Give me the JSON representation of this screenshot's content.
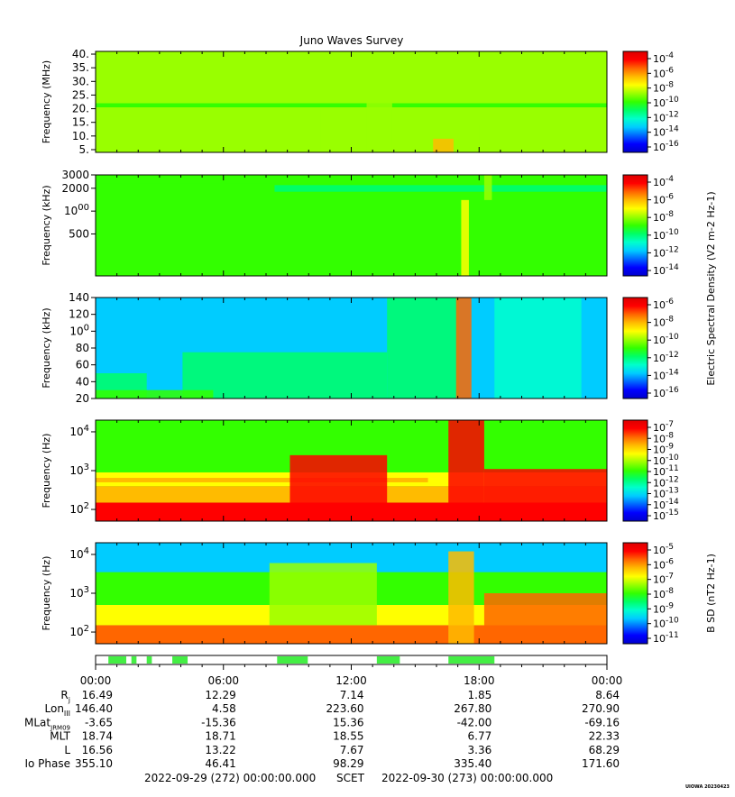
{
  "title": "Juno Waves Survey",
  "colors": {
    "colormap": [
      "#0000cc",
      "#0000ff",
      "#0066ff",
      "#00ccff",
      "#00ffcc",
      "#00ff66",
      "#33ff00",
      "#99ff00",
      "#ffff00",
      "#ffbb00",
      "#ff6600",
      "#ff0000",
      "#dd0000"
    ],
    "activity_bar": "#44ee44"
  },
  "chart_data": [
    {
      "type": "heatmap",
      "panel": "hfr-high",
      "ylabel": "Frequency (MHz)",
      "yscale": "linear",
      "ylim": [
        4,
        41
      ],
      "yticks": [
        {
          "v": 5,
          "label": "5."
        },
        {
          "v": 10,
          "label": "10."
        },
        {
          "v": 15,
          "label": "15."
        },
        {
          "v": 20,
          "label": "20."
        },
        {
          "v": 25,
          "label": "25."
        },
        {
          "v": 30,
          "label": "30."
        },
        {
          "v": 35,
          "label": "35."
        },
        {
          "v": 40,
          "label": "40."
        }
      ],
      "background_level": 6.5,
      "bands": [
        {
          "y": [
            20.5,
            22
          ],
          "level": 5.6,
          "t": [
            0,
            1
          ]
        }
      ],
      "events": [
        {
          "t": [
            0.66,
            0.7
          ],
          "y": [
            4,
            9
          ],
          "level": 8.5
        },
        {
          "t": [
            0.44,
            0.5
          ],
          "y": [
            4,
            20
          ],
          "level": 7.2
        },
        {
          "t": [
            0.53,
            0.58
          ],
          "y": [
            4,
            22
          ],
          "level": 7.4
        },
        {
          "t": [
            0.75,
            0.79
          ],
          "y": [
            4,
            14
          ],
          "level": 7.0
        }
      ],
      "colorbar": {
        "ticks": [
          "10-4",
          "10-6",
          "10-8",
          "10-10",
          "10-12",
          "10-14",
          "10-16"
        ],
        "label": ""
      }
    },
    {
      "type": "heatmap",
      "panel": "hfr-low",
      "ylabel": "Frequency (kHz)",
      "yscale": "log",
      "ylim": [
        140,
        3000
      ],
      "yticks": [
        {
          "v": 500,
          "label": "500"
        },
        {
          "v": 1000,
          "label": "1000"
        },
        {
          "v": 2000,
          "label": "2000"
        },
        {
          "v": 3000,
          "label": "3000"
        }
      ],
      "background_level": 6.3,
      "bands": [
        {
          "y": [
            2300,
            2900
          ],
          "level": 5.8,
          "t": [
            0,
            1
          ]
        },
        {
          "y": [
            1800,
            2200
          ],
          "level": 5.2,
          "t": [
            0.35,
            1
          ]
        }
      ],
      "events": [
        {
          "t": [
            0.715,
            0.73
          ],
          "y": [
            140,
            1400
          ],
          "level": 8.0
        },
        {
          "t": [
            0.76,
            0.775
          ],
          "y": [
            1400,
            3000
          ],
          "level": 6.8
        }
      ],
      "colorbar": {
        "ticks": [
          "10-4",
          "10-6",
          "10-8",
          "10-10",
          "10-12",
          "10-14"
        ],
        "label": "Electric Spectral Density (V2 m-2 Hz-1)"
      }
    },
    {
      "type": "heatmap",
      "panel": "lfr-high",
      "ylabel": "Frequency (kHz)",
      "yscale": "linear",
      "ylim": [
        20,
        140
      ],
      "yticks": [
        {
          "v": 20,
          "label": "20"
        },
        {
          "v": 40,
          "label": "40"
        },
        {
          "v": 60,
          "label": "60"
        },
        {
          "v": 80,
          "label": "80"
        },
        {
          "v": 100,
          "label": "100"
        },
        {
          "v": 120,
          "label": "120"
        },
        {
          "v": 140,
          "label": "140"
        }
      ],
      "background_level": 2.8,
      "bands": [],
      "events": [
        {
          "t": [
            0.0,
            0.1
          ],
          "y": [
            20,
            50
          ],
          "level": 4.5
        },
        {
          "t": [
            0.17,
            0.57
          ],
          "y": [
            20,
            75
          ],
          "level": 5.0
        },
        {
          "t": [
            0.57,
            0.71
          ],
          "y": [
            20,
            140
          ],
          "level": 4.5
        },
        {
          "t": [
            0.705,
            0.735
          ],
          "y": [
            20,
            140
          ],
          "level": 10.0
        },
        {
          "t": [
            0.78,
            0.95
          ],
          "y": [
            20,
            140
          ],
          "level": 4.0
        },
        {
          "t": [
            0.0,
            0.23
          ],
          "y": [
            20,
            30
          ],
          "level": 5.5
        }
      ],
      "colorbar": {
        "ticks": [
          "10-6",
          "10-8",
          "10-10",
          "10-12",
          "10-14",
          "10-16"
        ],
        "label": ""
      }
    },
    {
      "type": "heatmap",
      "panel": "lfr-low",
      "ylabel": "Frequency (Hz)",
      "yscale": "log",
      "ylim": [
        50,
        20000
      ],
      "yticks": [
        {
          "v": 100,
          "label": "10^2"
        },
        {
          "v": 1000,
          "label": "10^3"
        },
        {
          "v": 10000,
          "label": "10^4"
        }
      ],
      "background_level": 6.0,
      "bands": [
        {
          "y": [
            50,
            150
          ],
          "level": 10.8,
          "t": [
            0,
            1
          ]
        },
        {
          "y": [
            150,
            400
          ],
          "level": 9.0,
          "t": [
            0,
            1
          ]
        },
        {
          "y": [
            400,
            900
          ],
          "level": 8.0,
          "t": [
            0,
            1
          ]
        },
        {
          "y": [
            500,
            650
          ],
          "level": 8.8,
          "t": [
            0,
            0.65
          ]
        }
      ],
      "events": [
        {
          "t": [
            0.38,
            0.57
          ],
          "y": [
            50,
            2500
          ],
          "level": 10.5
        },
        {
          "t": [
            0.69,
            0.76
          ],
          "y": [
            50,
            20000
          ],
          "level": 11.0
        },
        {
          "t": [
            0.76,
            1.0
          ],
          "y": [
            50,
            1100
          ],
          "level": 11.2
        }
      ],
      "colorbar": {
        "ticks": [
          "10-7",
          "10-8",
          "10-9",
          "10-10",
          "10-11",
          "10-12",
          "10-13",
          "10-14",
          "10-15"
        ],
        "label": ""
      }
    },
    {
      "type": "heatmap",
      "panel": "magnetic",
      "ylabel": "Frequency (Hz)",
      "yscale": "log",
      "ylim": [
        50,
        20000
      ],
      "yticks": [
        {
          "v": 100,
          "label": "10^2"
        },
        {
          "v": 1000,
          "label": "10^3"
        },
        {
          "v": 10000,
          "label": "10^4"
        }
      ],
      "background_level": 2.6,
      "bands": [
        {
          "y": [
            50,
            150
          ],
          "level": 9.5,
          "t": [
            0,
            1
          ]
        },
        {
          "y": [
            150,
            500
          ],
          "level": 7.6,
          "t": [
            0,
            1
          ]
        },
        {
          "y": [
            500,
            3500
          ],
          "level": 5.5,
          "t": [
            0,
            1
          ]
        }
      ],
      "events": [
        {
          "t": [
            0.34,
            0.55
          ],
          "y": [
            150,
            6000
          ],
          "level": 6.8
        },
        {
          "t": [
            0.69,
            0.74
          ],
          "y": [
            50,
            12000
          ],
          "level": 8.5
        },
        {
          "t": [
            0.76,
            1.0
          ],
          "y": [
            100,
            1000
          ],
          "level": 9.5
        }
      ],
      "colorbar": {
        "ticks": [
          "10-5",
          "10-6",
          "10-7",
          "10-8",
          "10-9",
          "10-10",
          "10-11"
        ],
        "label": "B SD (nT2 Hz-1)"
      }
    }
  ],
  "activity_bar": {
    "segments": [
      [
        0.025,
        0.06
      ],
      [
        0.07,
        0.08
      ],
      [
        0.1,
        0.11
      ],
      [
        0.15,
        0.18
      ],
      [
        0.355,
        0.415
      ],
      [
        0.55,
        0.595
      ],
      [
        0.69,
        0.78
      ]
    ]
  },
  "time_labels": [
    "00:00",
    "06:00",
    "12:00",
    "18:00",
    "00:00"
  ],
  "ephemeris": [
    {
      "label": "Rj",
      "values": [
        "16.49",
        "12.29",
        "7.14",
        "1.85",
        "8.64"
      ]
    },
    {
      "label": "LonIII",
      "values": [
        "146.40",
        "4.58",
        "223.60",
        "267.80",
        "270.90"
      ]
    },
    {
      "label": "MLatJRM09",
      "values": [
        "-3.65",
        "-15.36",
        "15.36",
        "-42.00",
        "-69.16"
      ]
    },
    {
      "label": "MLT",
      "values": [
        "18.74",
        "18.71",
        "18.55",
        "6.77",
        "22.33"
      ]
    },
    {
      "label": "L",
      "values": [
        "16.56",
        "13.22",
        "7.67",
        "3.36",
        "68.29"
      ]
    },
    {
      "label": "Io Phase",
      "values": [
        "355.10",
        "46.41",
        "98.29",
        "335.40",
        "171.60"
      ]
    }
  ],
  "footer": {
    "start": "2022-09-29 (272) 00:00:00.000",
    "scet": "SCET",
    "end": "2022-09-30 (273) 00:00:00.000",
    "credit": "UIOWA 20230423"
  }
}
